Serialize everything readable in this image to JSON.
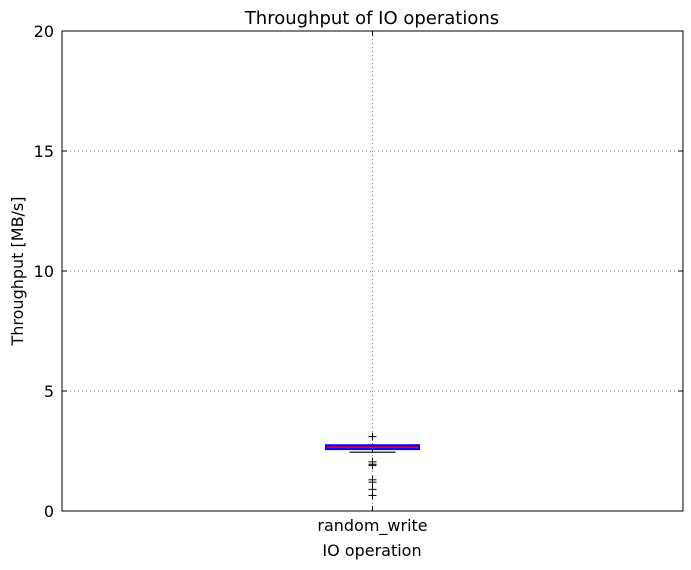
{
  "chart_data": {
    "type": "box",
    "title": "Throughput of IO operations",
    "xlabel": "IO operation",
    "ylabel": "Throughput [MB/s]",
    "ylim": [
      0,
      20
    ],
    "yticks": [
      "0",
      "5",
      "10",
      "15",
      "20"
    ],
    "categories": [
      "random_write"
    ],
    "grid": true,
    "boxes": [
      {
        "category": "random_write",
        "q1": 2.6,
        "median": 2.65,
        "q3": 2.72,
        "whisker_low": 2.45,
        "whisker_high": 2.72,
        "outliers": [
          3.1,
          2.05,
          1.95,
          1.9,
          1.3,
          1.2,
          0.9,
          0.65
        ]
      }
    ],
    "colors": {
      "box": "#0000ff",
      "median": "#ff0000",
      "whisker": "#000000",
      "outlier": "#000000",
      "grid": "#808080"
    }
  }
}
